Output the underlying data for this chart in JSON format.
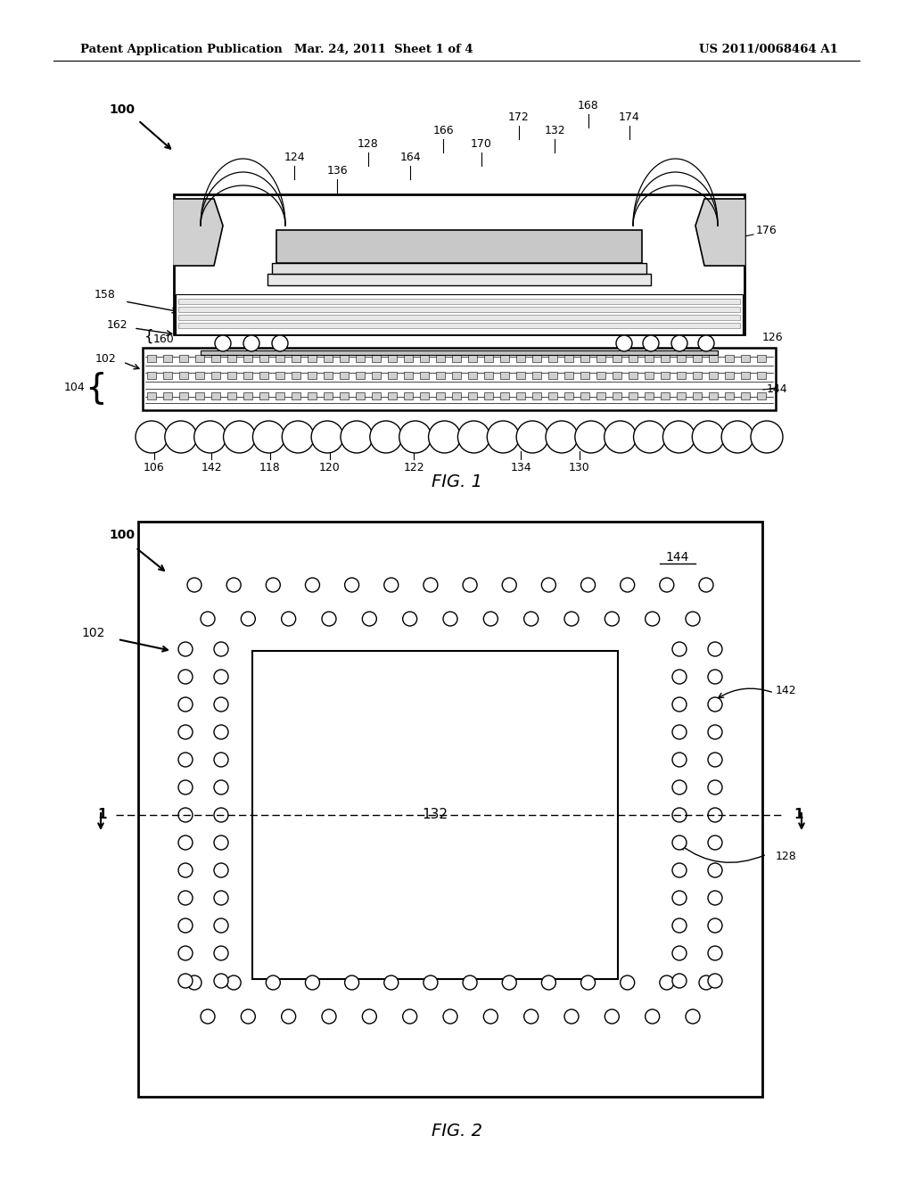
{
  "bg_color": "#ffffff",
  "header_left": "Patent Application Publication",
  "header_mid": "Mar. 24, 2011  Sheet 1 of 4",
  "header_right": "US 2011/0068464 A1",
  "fig1_label": "FIG. 1",
  "fig2_label": "FIG. 2"
}
